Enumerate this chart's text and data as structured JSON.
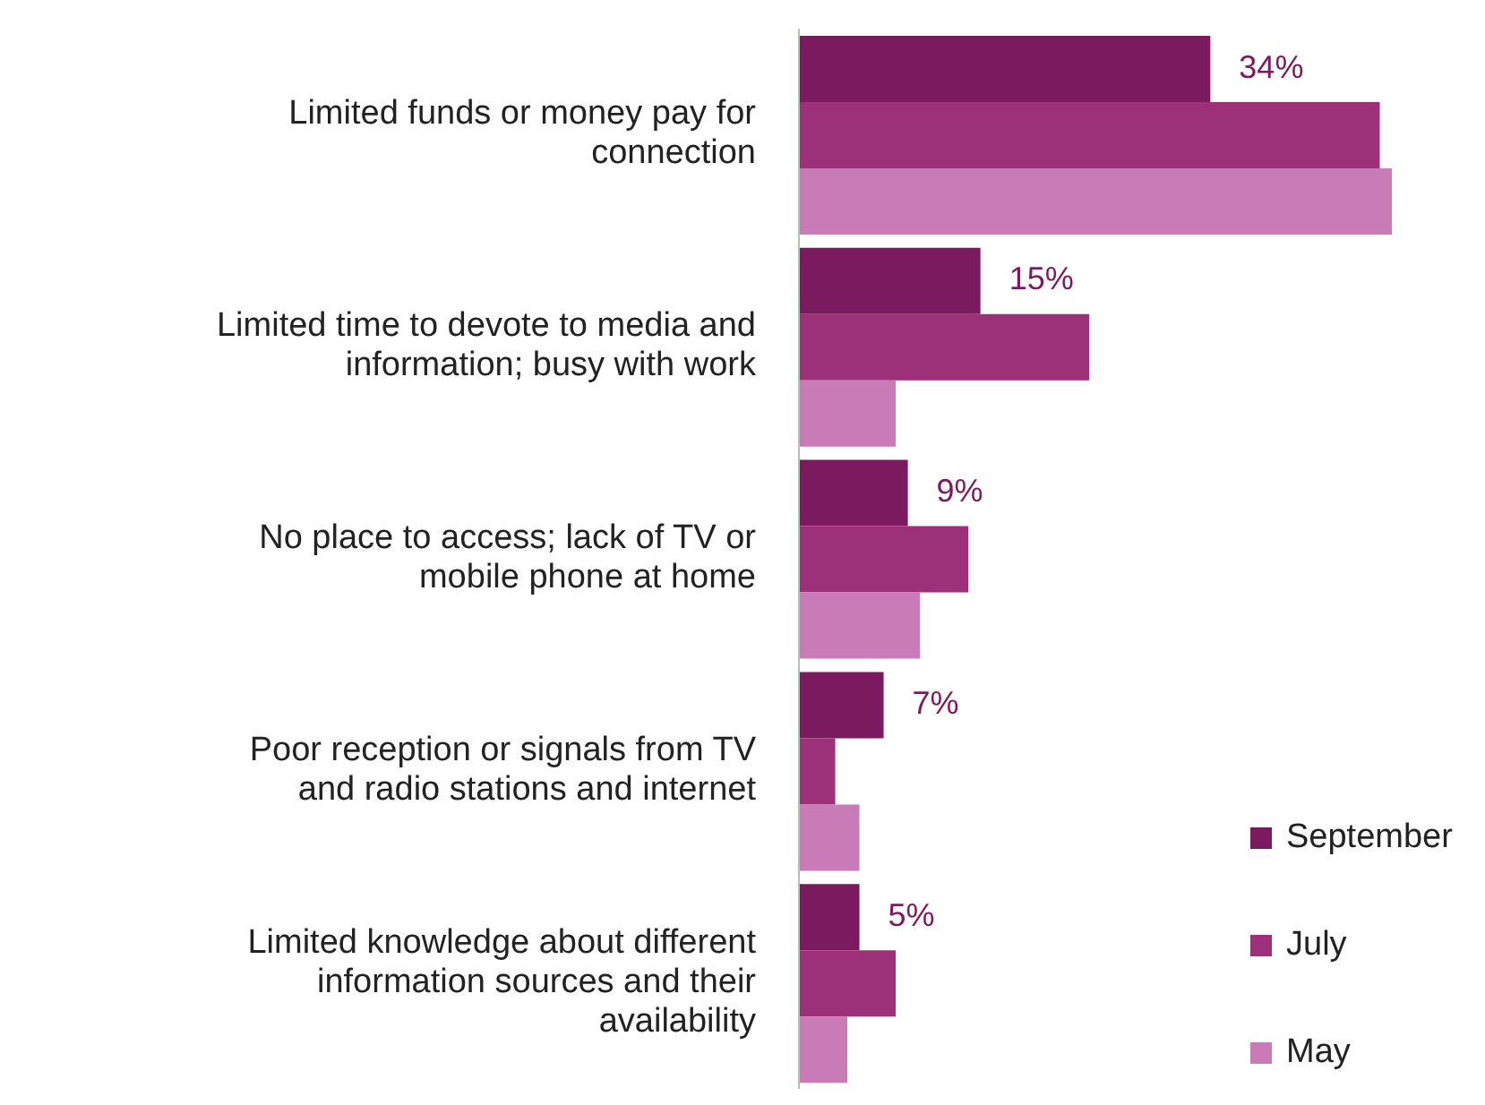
{
  "chart_data": {
    "type": "bar",
    "orientation": "horizontal",
    "categories": [
      "Limited funds or money pay for connection",
      "Limited time to devote to media and information; busy with work",
      "No place to access; lack of TV or mobile phone at home",
      "Poor reception or signals from TV and radio stations and internet",
      "Limited knowledge about different information sources and their availability"
    ],
    "series": [
      {
        "name": "September",
        "color": "#7b1a5e",
        "values": [
          34,
          15,
          9,
          7,
          5
        ],
        "value_labels": [
          "34%",
          "15%",
          "9%",
          "7%",
          "5%"
        ]
      },
      {
        "name": "July",
        "color": "#9c3079",
        "values": [
          48,
          24,
          14,
          3,
          8
        ]
      },
      {
        "name": "May",
        "color": "#c87bb6",
        "values": [
          49,
          8,
          10,
          5,
          4
        ]
      }
    ],
    "tick_labels": "y",
    "legend": "bottom right"
  }
}
